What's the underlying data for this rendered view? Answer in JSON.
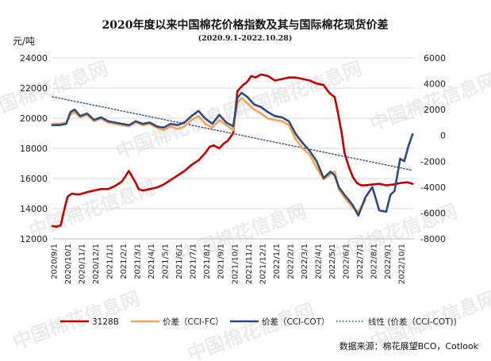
{
  "chart_data": {
    "type": "line",
    "title": "2020年度以来中国棉花价格指数及其与国际棉花现货价差",
    "subtitle": "(2020.9.1-2022.10.28)",
    "ylabel_left": "元/吨",
    "ylim_left": [
      12000,
      24000
    ],
    "yticks_left": [
      "12000",
      "14000",
      "16000",
      "18000",
      "20000",
      "22000",
      "24000"
    ],
    "ylim_right": [
      -8000,
      6000
    ],
    "yticks_right": [
      "-8000",
      "-6000",
      "-4000",
      "-2000",
      "0",
      "2000",
      "4000",
      "6000"
    ],
    "xlim": [
      0,
      26
    ],
    "x_tick_labels": [
      "2020/9/1",
      "2020/10/1",
      "2020/11/1",
      "2020/12/1",
      "2021/1/1",
      "2021/2/1",
      "2021/3/1",
      "2021/4/1",
      "2021/5/1",
      "2021/6/1",
      "2021/7/1",
      "2021/8/1",
      "2021/9/1",
      "2021/10/1",
      "2021/11/1",
      "2021/12/1",
      "2022/1/1",
      "2022/2/1",
      "2022/3/1",
      "2022/4/1",
      "2022/5/1",
      "2022/6/1",
      "2022/7/1",
      "2022/8/1",
      "2022/9/1",
      "2022/10/1"
    ],
    "source": "数据来源：棉花展望BCO，Cotlook",
    "watermark": "中国棉花信息网",
    "legend_position": "bottom",
    "series": [
      {
        "name": "3128B",
        "axis": "left",
        "color": "#c00000",
        "style": "solid",
        "x": [
          0,
          0.3,
          0.6,
          0.9,
          1.1,
          1.4,
          1.7,
          2,
          2.5,
          3,
          3.5,
          4,
          4.5,
          5,
          5.5,
          6,
          6.2,
          6.5,
          7,
          7.5,
          8,
          8.5,
          9,
          9.5,
          10,
          10.5,
          11,
          11.3,
          11.6,
          12,
          12.3,
          12.6,
          13,
          13.3,
          13.7,
          14,
          14.3,
          14.6,
          15,
          15.5,
          16,
          16.5,
          17,
          17.5,
          18,
          18.5,
          19,
          19.5,
          19.8,
          20,
          20.3,
          20.5,
          20.8,
          21,
          21.3,
          21.6,
          21.9,
          22.2,
          22.5,
          23,
          23.5,
          24,
          24.5,
          25,
          25.5,
          25.9
        ],
        "y": [
          12850,
          12800,
          12900,
          14100,
          14800,
          15000,
          14950,
          14950,
          15100,
          15200,
          15300,
          15300,
          15500,
          15800,
          16500,
          15700,
          15300,
          15200,
          15300,
          15400,
          15600,
          15900,
          16200,
          16500,
          16900,
          17200,
          17700,
          18100,
          18200,
          18000,
          18300,
          18500,
          19000,
          21800,
          22200,
          22400,
          22800,
          22700,
          22900,
          22800,
          22500,
          22600,
          22700,
          22700,
          22600,
          22500,
          22300,
          22200,
          21800,
          21600,
          21400,
          20500,
          19000,
          17700,
          16800,
          16100,
          15700,
          15550,
          15550,
          15600,
          15650,
          15550,
          15600,
          15700,
          15750,
          15650
        ]
      },
      {
        "name": "价差（CCI-FC）",
        "axis": "right",
        "color": "#f4a35a",
        "style": "solid",
        "x": [
          0,
          0.5,
          1,
          1.3,
          1.6,
          2,
          2.5,
          3,
          3.5,
          4,
          4.5,
          5,
          5.5,
          6,
          6.5,
          7,
          7.5,
          8,
          8.5,
          9,
          9.5,
          10,
          10.5,
          11,
          11.5,
          12,
          12.5,
          13,
          13.3,
          13.6,
          14,
          14.5,
          15,
          15.5,
          16,
          16.5,
          17,
          17.5,
          18,
          18.5,
          19,
          19.5,
          20,
          20.3,
          20.6,
          21,
          21.3,
          21.6,
          22,
          22.5
        ],
        "y": [
          900,
          900,
          1000,
          1600,
          1800,
          1400,
          1600,
          1100,
          1300,
          1000,
          900,
          800,
          700,
          1000,
          800,
          900,
          600,
          400,
          700,
          500,
          700,
          1200,
          1500,
          900,
          600,
          1200,
          800,
          400,
          2500,
          2900,
          2500,
          2000,
          1700,
          1300,
          1200,
          1100,
          800,
          -300,
          -1000,
          -1500,
          -2500,
          -3400,
          -3000,
          -2800,
          -4200,
          -4800,
          -5200,
          -5600,
          -5900,
          -5000
        ]
      },
      {
        "name": "价差（CCI-COT）",
        "axis": "right",
        "color": "#2f4b7c",
        "style": "solid",
        "x": [
          0,
          0.5,
          1,
          1.3,
          1.6,
          2,
          2.5,
          3,
          3.5,
          4,
          4.5,
          5,
          5.5,
          6,
          6.5,
          7,
          7.5,
          8,
          8.5,
          9,
          9.5,
          10,
          10.5,
          11,
          11.5,
          12,
          12.5,
          13,
          13.3,
          13.6,
          14,
          14.5,
          15,
          15.5,
          16,
          16.5,
          17,
          17.5,
          18,
          18.5,
          19,
          19.5,
          20,
          20.3,
          20.6,
          21,
          21.3,
          21.6,
          22,
          22.5,
          23,
          23.5,
          24,
          24.3,
          24.6,
          25,
          25.3,
          25.6,
          25.9
        ],
        "y": [
          800,
          800,
          900,
          1800,
          2000,
          1500,
          1700,
          1200,
          1400,
          1100,
          1000,
          900,
          800,
          1100,
          900,
          1000,
          700,
          600,
          900,
          800,
          1000,
          1500,
          1900,
          1300,
          900,
          1600,
          1000,
          700,
          2900,
          3300,
          3000,
          2400,
          2200,
          1800,
          1500,
          1400,
          1100,
          100,
          -600,
          -1200,
          -2000,
          -3300,
          -2800,
          -3100,
          -4000,
          -4600,
          -5000,
          -5400,
          -6200,
          -4800,
          -4000,
          -5800,
          -5900,
          -4600,
          -4300,
          -1800,
          -2000,
          -800,
          100
        ]
      },
      {
        "name": "线性 (价差（CCI-COT))",
        "axis": "right",
        "color": "#2f4b7c",
        "style": "dotted",
        "x": [
          0,
          25.9
        ],
        "y": [
          3000,
          -2700
        ]
      }
    ]
  }
}
